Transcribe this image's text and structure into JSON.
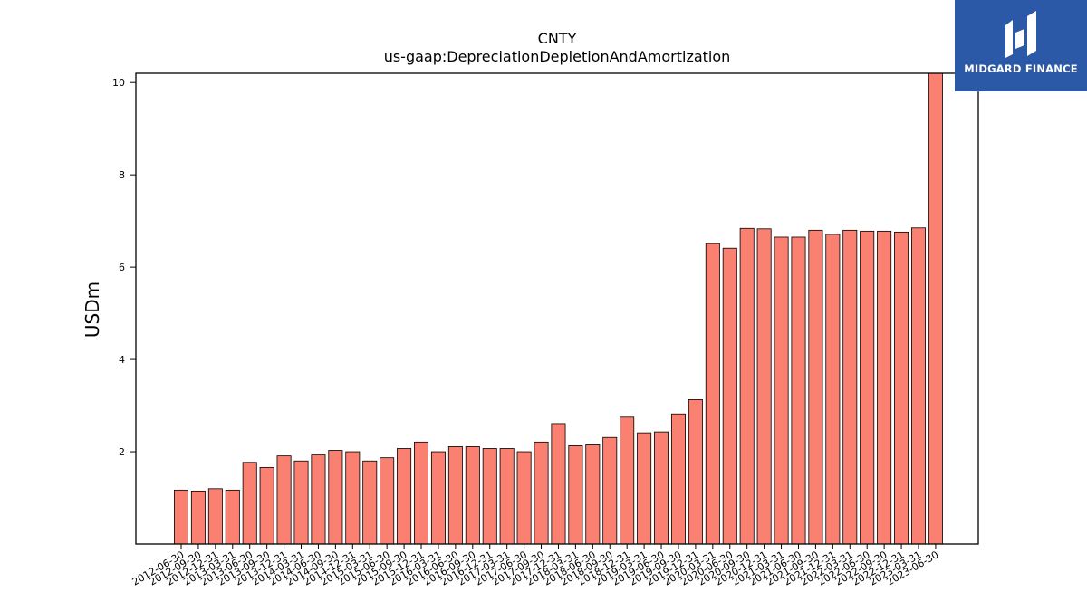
{
  "logo": {
    "text": "MIDGARD FINANCE"
  },
  "chart_data": {
    "type": "bar",
    "title": "CNTY",
    "subtitle": "us-gaap:DepreciationDepletionAndAmortization",
    "xlabel": "",
    "ylabel": "USDm",
    "ylim": [
      0,
      10.2
    ],
    "yticks": [
      2,
      4,
      6,
      8,
      10
    ],
    "grid": false,
    "bar_color": "#fa8072",
    "edge_color": "#000000",
    "categories": [
      "2012-06-30",
      "2012-09-30",
      "2012-12-31",
      "2013-03-31",
      "2013-06-30",
      "2013-09-30",
      "2013-12-31",
      "2014-03-31",
      "2014-06-30",
      "2014-09-30",
      "2014-12-31",
      "2015-03-31",
      "2015-06-30",
      "2015-09-30",
      "2015-12-31",
      "2016-03-31",
      "2016-06-30",
      "2016-09-30",
      "2016-12-31",
      "2017-03-31",
      "2017-06-30",
      "2017-09-30",
      "2017-12-31",
      "2018-03-31",
      "2018-06-30",
      "2018-09-30",
      "2018-12-31",
      "2019-03-31",
      "2019-06-30",
      "2019-09-30",
      "2019-12-31",
      "2020-03-31",
      "2020-06-30",
      "2020-09-30",
      "2020-12-31",
      "2021-03-31",
      "2021-06-30",
      "2021-09-30",
      "2021-12-31",
      "2022-03-31",
      "2022-06-30",
      "2022-09-30",
      "2022-12-31",
      "2023-03-31",
      "2023-06-30"
    ],
    "values": [
      1.17,
      1.15,
      1.2,
      1.17,
      1.77,
      1.66,
      1.91,
      1.8,
      1.93,
      2.03,
      2.0,
      1.8,
      1.87,
      2.07,
      2.21,
      2.0,
      2.11,
      2.11,
      2.07,
      2.07,
      2.0,
      2.21,
      2.61,
      2.13,
      2.15,
      2.31,
      2.75,
      2.41,
      2.43,
      2.82,
      3.13,
      6.51,
      6.41,
      6.84,
      6.83,
      6.65,
      6.65,
      6.8,
      6.71,
      6.8,
      6.78,
      6.78,
      6.76,
      6.85,
      10.2
    ]
  }
}
